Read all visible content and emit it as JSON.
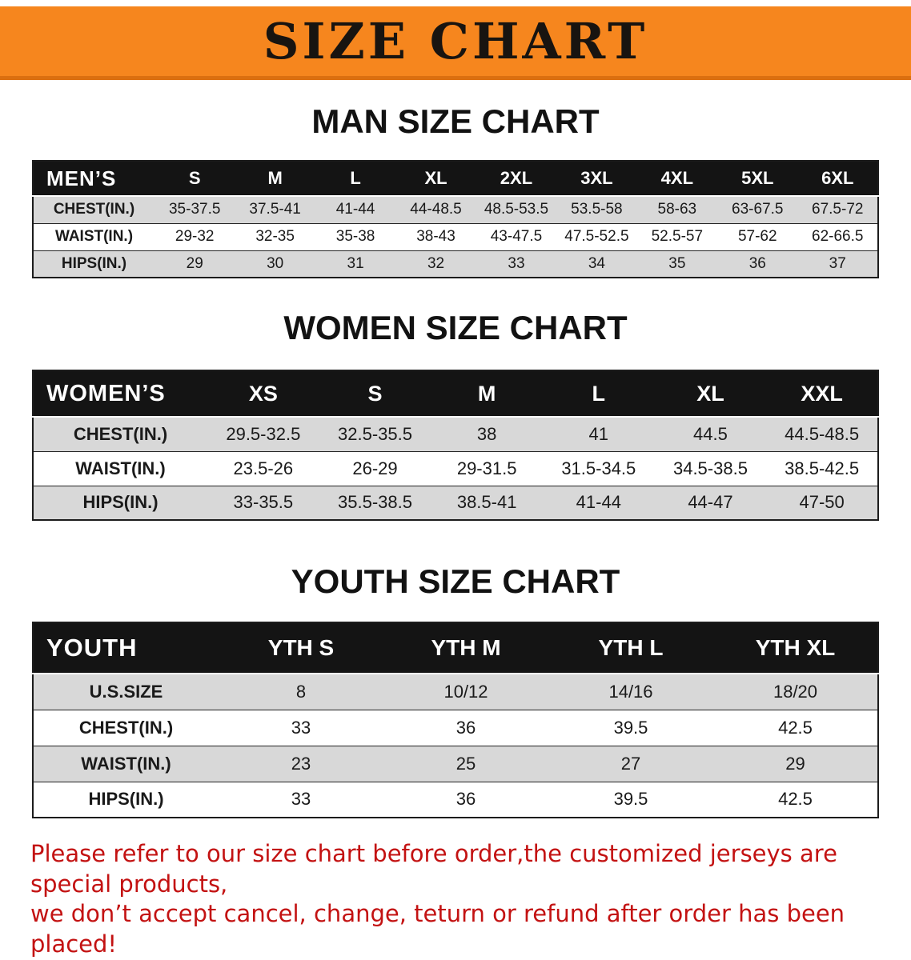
{
  "banner": {
    "title": "SIZE CHART"
  },
  "colors": {
    "banner_bg": "#f6861e",
    "banner_edge": "#db6f10",
    "table_header_bg": "#141414",
    "row_alt_gray": "#d8d8d8",
    "note_red": "#c31212"
  },
  "men": {
    "heading": "MAN SIZE CHART",
    "table": {
      "header": [
        "MEN’S",
        "S",
        "M",
        "L",
        "XL",
        "2XL",
        "3XL",
        "4XL",
        "5XL",
        "6XL"
      ],
      "rows": [
        [
          "CHEST(IN.)",
          "35-37.5",
          "37.5-41",
          "41-44",
          "44-48.5",
          "48.5-53.5",
          "53.5-58",
          "58-63",
          "63-67.5",
          "67.5-72"
        ],
        [
          "WAIST(IN.)",
          "29-32",
          "32-35",
          "35-38",
          "38-43",
          "43-47.5",
          "47.5-52.5",
          "52.5-57",
          "57-62",
          "62-66.5"
        ],
        [
          "HIPS(IN.)",
          "29",
          "30",
          "31",
          "32",
          "33",
          "34",
          "35",
          "36",
          "37"
        ]
      ]
    }
  },
  "women": {
    "heading": "WOMEN SIZE CHART",
    "table": {
      "header": [
        "WOMEN’S",
        "XS",
        "S",
        "M",
        "L",
        "XL",
        "XXL"
      ],
      "rows": [
        [
          "CHEST(IN.)",
          "29.5-32.5",
          "32.5-35.5",
          "38",
          "41",
          "44.5",
          "44.5-48.5"
        ],
        [
          "WAIST(IN.)",
          "23.5-26",
          "26-29",
          "29-31.5",
          "31.5-34.5",
          "34.5-38.5",
          "38.5-42.5"
        ],
        [
          "HIPS(IN.)",
          "33-35.5",
          "35.5-38.5",
          "38.5-41",
          "41-44",
          "44-47",
          "47-50"
        ]
      ]
    }
  },
  "youth": {
    "heading": "YOUTH SIZE CHART",
    "table": {
      "header": [
        "YOUTH",
        "YTH S",
        "YTH M",
        "YTH L",
        "YTH XL"
      ],
      "rows": [
        [
          "U.S.SIZE",
          "8",
          "10/12",
          "14/16",
          "18/20"
        ],
        [
          "CHEST(IN.)",
          "33",
          "36",
          "39.5",
          "42.5"
        ],
        [
          "WAIST(IN.)",
          "23",
          "25",
          "27",
          "29"
        ],
        [
          "HIPS(IN.)",
          "33",
          "36",
          "39.5",
          "42.5"
        ]
      ]
    }
  },
  "note": {
    "line1": "Please refer to our size chart before order,the customized jerseys are special products,",
    "line2": "we don’t accept cancel, change, teturn or refund after order has been placed!"
  }
}
